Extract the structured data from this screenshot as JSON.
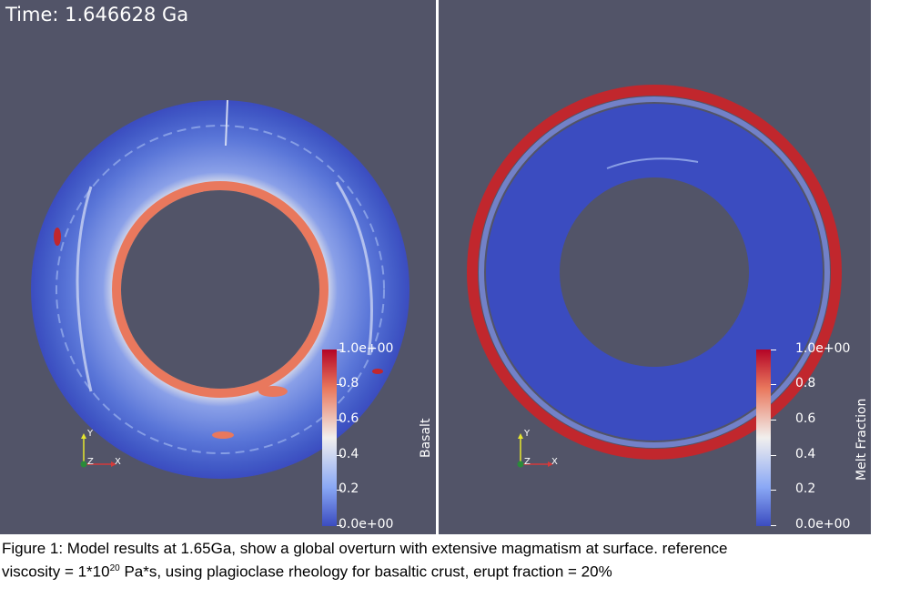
{
  "left_panel": {
    "time_label": "Time: 1.646628 Ga",
    "colorbar": {
      "title": "Basalt",
      "ticks": [
        "1.0e+00",
        "0.8",
        "0.6",
        "0.4",
        "0.2",
        "0.0e+00"
      ]
    },
    "axes": {
      "y": "Y",
      "z": "Z",
      "x": "X"
    }
  },
  "right_panel": {
    "colorbar": {
      "title": "Melt Fraction",
      "ticks": [
        "1.0e+00",
        "0.8",
        "0.6",
        "0.4",
        "0.2",
        "0.0e+00"
      ]
    },
    "axes": {
      "y": "Y",
      "z": "Z",
      "x": "X"
    }
  },
  "colors": {
    "background": "#525468",
    "colormap_low": "#3b4cc0",
    "colormap_mid": "#f1efee",
    "colormap_high": "#b40426"
  },
  "caption": {
    "line1": "Figure 1: Model results at 1.65Ga, show a global overturn with extensive magmatism at surface. reference",
    "line2_pre": "viscosity = 1*10",
    "line2_exp": "20",
    "line2_post": " Pa*s, using plagioclase rheology for basaltic crust, erupt fraction = 20%"
  }
}
